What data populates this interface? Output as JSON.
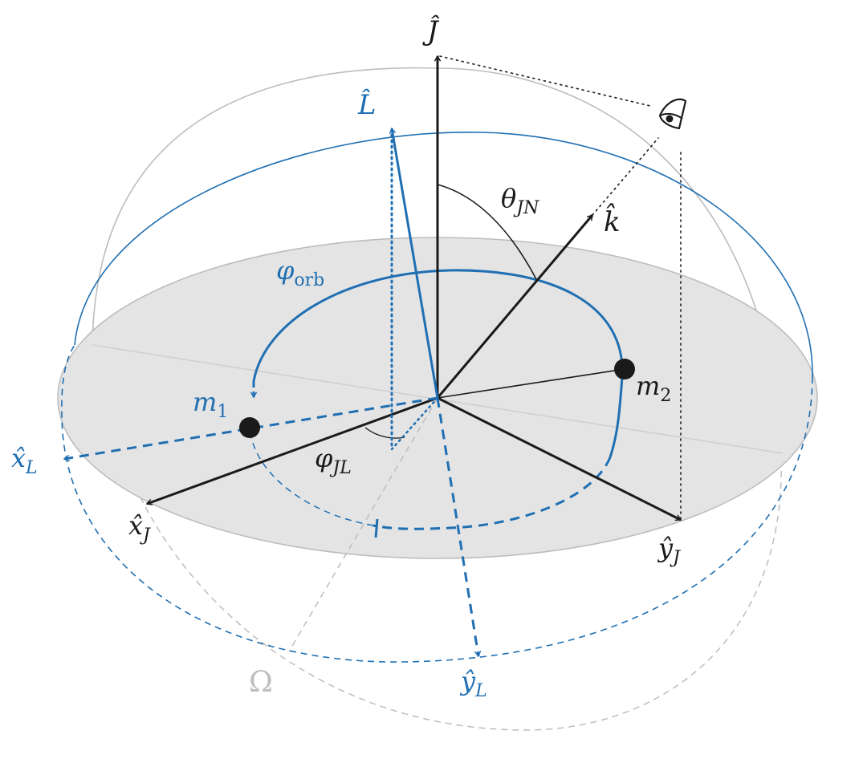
{
  "labels": {
    "J": "Ĵ",
    "L": "L̂",
    "k": "k̂",
    "theta_JN": "θ",
    "theta_JN_sub": "JN",
    "phi_orb": "φ",
    "phi_orb_sub": "orb",
    "phi_JL": "φ",
    "phi_JL_sub": "JL",
    "m1": "m",
    "m1_sub": "1",
    "m2": "m",
    "m2_sub": "2",
    "xL": "x̂",
    "xL_sub": "L",
    "yL": "ŷ",
    "yL_sub": "L",
    "xJ": "x̂",
    "xJ_sub": "J",
    "yJ": "ŷ",
    "yJ_sub": "J",
    "Omega": "Ω"
  },
  "icons": {
    "observer": "eye-icon"
  },
  "colors": {
    "black": "#1a1a1a",
    "blue": "#1f6fb2",
    "gray_line": "#bdbdbd",
    "plane_fill": "#e4e4e4",
    "plane_stroke": "#bdbdbd"
  }
}
